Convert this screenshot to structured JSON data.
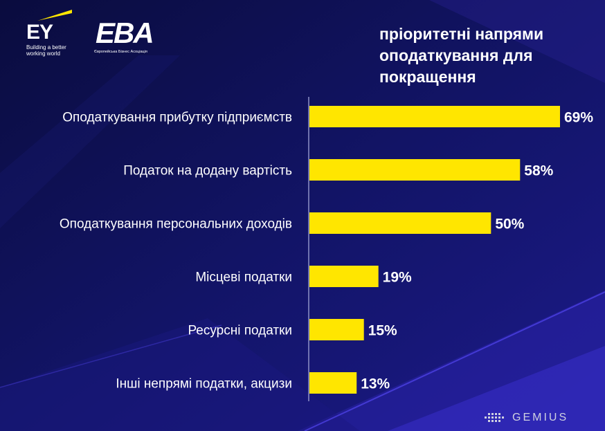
{
  "logos": {
    "ey": {
      "letters": "EY",
      "tagline": "Building a better working world"
    },
    "eba": {
      "letters": "EBA",
      "subtitle": "Європейська Бізнес Асоціація"
    }
  },
  "title": "пріоритетні напрями оподаткування для покращення",
  "footer": {
    "brand": "GEMIUS"
  },
  "colors": {
    "background": "#0d0f52",
    "bar": "#ffe600",
    "text": "#ffffff"
  },
  "chart_data": {
    "type": "bar",
    "orientation": "horizontal",
    "title": "пріоритетні напрями оподаткування для покращення",
    "categories": [
      "Оподаткування прибутку підприємств",
      "Податок на додану вартість",
      "Оподаткування персональних доходів",
      "Місцеві податки",
      "Ресурсні податки",
      "Інші непрямі податки, акцизи"
    ],
    "values": [
      69,
      58,
      50,
      19,
      15,
      13
    ],
    "value_labels": [
      "69%",
      "58%",
      "50%",
      "19%",
      "15%",
      "13%"
    ],
    "unit": "%",
    "xlim": [
      0,
      69
    ],
    "grid": false,
    "legend": "none"
  }
}
